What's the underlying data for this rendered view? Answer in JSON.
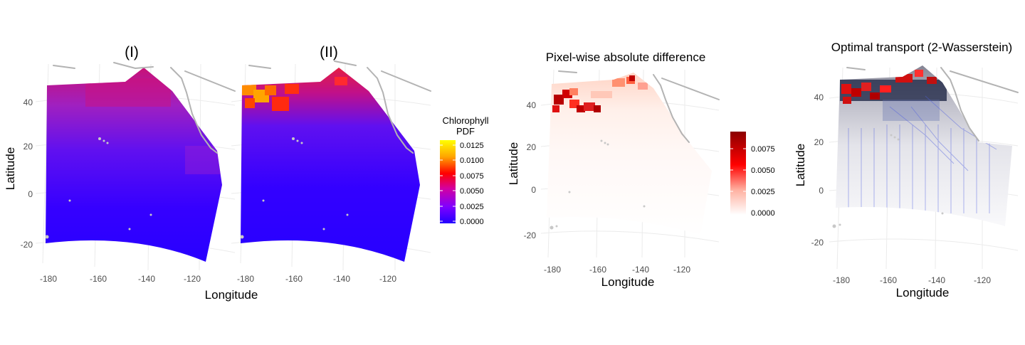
{
  "panel_I": {
    "title": "(I)",
    "xlabel": "Longitude",
    "ylabel": "Latitude",
    "x_ticks": [
      "-180",
      "-160",
      "-140",
      "-120"
    ],
    "y_ticks": [
      "40",
      "20",
      "0",
      "-20"
    ]
  },
  "panel_II": {
    "title": "(II)",
    "x_ticks": [
      "-180",
      "-160",
      "-140",
      "-120"
    ]
  },
  "legend_pdf": {
    "title_line1": "Chlorophyll",
    "title_line2": "PDF",
    "ticks": [
      "0.0125",
      "0.0100",
      "0.0075",
      "0.0050",
      "0.0025",
      "0.0000"
    ],
    "colors": [
      "#ffff00",
      "#ffa500",
      "#ff0000",
      "#d400a0",
      "#8000ff",
      "#2200ff"
    ]
  },
  "panel_diff": {
    "title": "Pixel-wise absolute difference",
    "xlabel": "Longitude",
    "ylabel": "Latitude",
    "x_ticks": [
      "-180",
      "-160",
      "-140",
      "-120"
    ],
    "y_ticks": [
      "40",
      "20",
      "0",
      "-20"
    ],
    "legend_ticks": [
      "0.0075",
      "0.0050",
      "0.0025",
      "0.0000"
    ],
    "legend_colors": [
      "#8b0000",
      "#ff0000",
      "#ffb0a0",
      "#ffffff"
    ]
  },
  "panel_ot": {
    "title": "Optimal transport (2-Wasserstein)",
    "xlabel": "Longitude",
    "ylabel": "Latitude",
    "x_ticks": [
      "-180",
      "-160",
      "-140",
      "-120"
    ],
    "y_ticks": [
      "40",
      "20",
      "0",
      "-20"
    ]
  },
  "chart_data": [
    {
      "type": "heatmap",
      "title": "(I)",
      "xlabel": "Longitude",
      "ylabel": "Latitude",
      "x_ticks": [
        -180,
        -160,
        -140,
        -120
      ],
      "y_ticks": [
        -20,
        0,
        20,
        40
      ],
      "xlim": [
        -185,
        -112
      ],
      "ylim": [
        -28,
        54
      ],
      "legend": {
        "title": "Chlorophyll PDF",
        "range": [
          0,
          0.0135
        ],
        "placement": "right"
      }
    },
    {
      "type": "heatmap",
      "title": "(II)",
      "xlabel": "Longitude",
      "ylabel": "Latitude",
      "x_ticks": [
        -180,
        -160,
        -140,
        -120
      ],
      "y_ticks": [
        -20,
        0,
        20,
        40
      ],
      "xlim": [
        -185,
        -112
      ],
      "ylim": [
        -28,
        54
      ],
      "legend": {
        "title": "Chlorophyll PDF",
        "range": [
          0,
          0.0135
        ],
        "placement": "right"
      }
    },
    {
      "type": "heatmap",
      "title": "Pixel-wise absolute difference",
      "xlabel": "Longitude",
      "ylabel": "Latitude",
      "x_ticks": [
        -180,
        -160,
        -140,
        -120
      ],
      "y_ticks": [
        -20,
        0,
        20,
        40
      ],
      "xlim": [
        -185,
        -112
      ],
      "ylim": [
        -28,
        54
      ],
      "legend": {
        "range": [
          0,
          0.0095
        ],
        "placement": "right"
      }
    },
    {
      "type": "heatmap",
      "title": "Optimal transport (2-Wasserstein)",
      "xlabel": "Longitude",
      "ylabel": "Latitude",
      "x_ticks": [
        -180,
        -160,
        -140,
        -120
      ],
      "y_ticks": [
        -20,
        0,
        20,
        40
      ],
      "xlim": [
        -185,
        -112
      ],
      "ylim": [
        -28,
        54
      ]
    }
  ]
}
